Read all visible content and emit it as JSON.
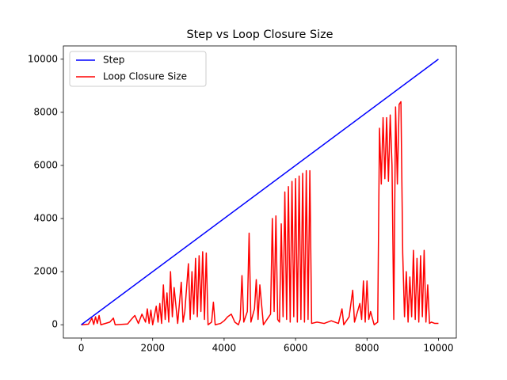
{
  "chart_data": {
    "type": "line",
    "title": "Step vs Loop Closure Size",
    "series": [
      {
        "name": "Step",
        "color": "#0000ff",
        "x": [
          0,
          10000
        ],
        "values": [
          0,
          10000
        ]
      },
      {
        "name": "Loop Closure Size",
        "color": "#ff0000",
        "x": [
          0,
          200,
          300,
          350,
          400,
          450,
          500,
          550,
          800,
          900,
          950,
          1300,
          1400,
          1500,
          1600,
          1700,
          1800,
          1850,
          1900,
          1950,
          2000,
          2100,
          2150,
          2200,
          2250,
          2300,
          2350,
          2400,
          2450,
          2500,
          2550,
          2600,
          2700,
          2800,
          2850,
          2900,
          3000,
          3050,
          3100,
          3150,
          3200,
          3250,
          3300,
          3350,
          3400,
          3450,
          3500,
          3550,
          3650,
          3700,
          3750,
          3900,
          4000,
          4100,
          4200,
          4300,
          4400,
          4450,
          4500,
          4550,
          4650,
          4700,
          4750,
          4850,
          4900,
          4950,
          5000,
          5100,
          5300,
          5350,
          5400,
          5450,
          5500,
          5550,
          5600,
          5650,
          5700,
          5750,
          5800,
          5850,
          5900,
          5950,
          6000,
          6050,
          6100,
          6150,
          6200,
          6250,
          6300,
          6350,
          6400,
          6450,
          6600,
          6800,
          7000,
          7200,
          7300,
          7350,
          7500,
          7600,
          7650,
          7800,
          7850,
          7900,
          7950,
          8000,
          8050,
          8100,
          8200,
          8300,
          8350,
          8400,
          8450,
          8500,
          8550,
          8600,
          8650,
          8700,
          8750,
          8800,
          8850,
          8900,
          8950,
          9000,
          9050,
          9100,
          9150,
          9200,
          9250,
          9300,
          9350,
          9400,
          9450,
          9500,
          9550,
          9600,
          9650,
          9700,
          9750,
          9800,
          9900,
          10000
        ],
        "values": [
          0,
          20,
          250,
          10,
          300,
          50,
          350,
          0,
          100,
          250,
          0,
          30,
          200,
          350,
          50,
          400,
          100,
          600,
          50,
          550,
          0,
          700,
          100,
          800,
          50,
          1500,
          200,
          1200,
          100,
          2000,
          300,
          1400,
          50,
          1600,
          100,
          500,
          2300,
          200,
          2000,
          400,
          2500,
          300,
          2600,
          500,
          2750,
          200,
          2700,
          0,
          100,
          850,
          0,
          50,
          150,
          300,
          400,
          100,
          0,
          200,
          1850,
          100,
          500,
          3450,
          100,
          600,
          1700,
          200,
          1500,
          0,
          400,
          4000,
          500,
          4100,
          200,
          100,
          3800,
          300,
          5000,
          200,
          5200,
          100,
          5400,
          300,
          5500,
          100,
          5600,
          200,
          5700,
          100,
          5800,
          200,
          5800,
          50,
          100,
          50,
          150,
          50,
          600,
          0,
          300,
          1300,
          100,
          800,
          200,
          1650,
          100,
          1650,
          200,
          500,
          0,
          100,
          7400,
          5300,
          7800,
          5500,
          7800,
          5400,
          7900,
          6000,
          200,
          8200,
          5300,
          8300,
          8400,
          2700,
          300,
          2000,
          100,
          1800,
          300,
          2800,
          200,
          2500,
          100,
          2600,
          300,
          2800,
          100,
          1500,
          50,
          100,
          50,
          50
        ]
      }
    ],
    "xlim": [
      -500,
      10500
    ],
    "ylim": [
      -500,
      10500
    ],
    "xticks": [
      0,
      2000,
      4000,
      6000,
      8000,
      10000
    ],
    "yticks": [
      0,
      2000,
      4000,
      6000,
      8000,
      10000
    ],
    "legend": "upper left"
  }
}
